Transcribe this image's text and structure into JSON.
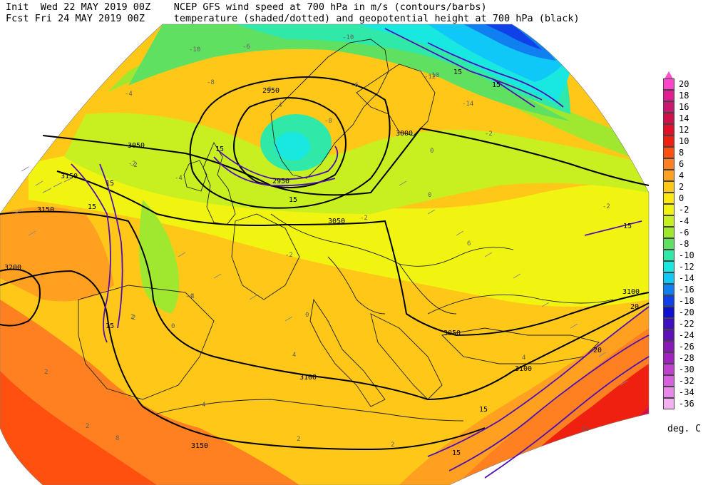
{
  "header": {
    "line1_left": "Init  Wed 22 MAY 2019 00Z",
    "line1_right": "NCEP GFS wind speed at 700 hPa in m/s (contours/barbs)",
    "line2_left": "Fcst Fri 24 MAY 2019 00Z",
    "line2_right": "temperature (shaded/dotted) and geopotential height at 700 hPa (black)"
  },
  "legend": {
    "unit": "deg. C",
    "items": [
      {
        "label": "20",
        "color": "#ff44cc"
      },
      {
        "label": "18",
        "color": "#e02090"
      },
      {
        "label": "16",
        "color": "#c81870"
      },
      {
        "label": "14",
        "color": "#d0104a"
      },
      {
        "label": "12",
        "color": "#e0102a"
      },
      {
        "label": "10",
        "color": "#f02010"
      },
      {
        "label": "8",
        "color": "#ff5010"
      },
      {
        "label": "6",
        "color": "#ff8020"
      },
      {
        "label": "4",
        "color": "#ffa020"
      },
      {
        "label": "2",
        "color": "#ffc818"
      },
      {
        "label": "0",
        "color": "#ffe810"
      },
      {
        "label": "-2",
        "color": "#f0f410"
      },
      {
        "label": "-4",
        "color": "#c8f020"
      },
      {
        "label": "-6",
        "color": "#a0e830"
      },
      {
        "label": "-8",
        "color": "#60e060"
      },
      {
        "label": "-10",
        "color": "#30e8a8"
      },
      {
        "label": "-12",
        "color": "#18e8e0"
      },
      {
        "label": "-14",
        "color": "#10c8f8"
      },
      {
        "label": "-16",
        "color": "#1080f0"
      },
      {
        "label": "-18",
        "color": "#1040e8"
      },
      {
        "label": "-20",
        "color": "#1010d0"
      },
      {
        "label": "-22",
        "color": "#4010c0"
      },
      {
        "label": "-24",
        "color": "#6010b8"
      },
      {
        "label": "-26",
        "color": "#8818b8"
      },
      {
        "label": "-28",
        "color": "#a020c0"
      },
      {
        "label": "-30",
        "color": "#c040d0"
      },
      {
        "label": "-32",
        "color": "#d860e0"
      },
      {
        "label": "-34",
        "color": "#e888e8"
      },
      {
        "label": "-36",
        "color": "#f4b0f0"
      }
    ]
  },
  "height_labels": [
    "2950",
    "3000",
    "3050",
    "3050",
    "3100",
    "3100",
    "3100",
    "3150",
    "3150",
    "3150",
    "3200",
    "2950",
    "3050"
  ],
  "wind_labels": [
    "15",
    "15",
    "15",
    "15",
    "15",
    "15",
    "15",
    "15",
    "15",
    "20",
    "15",
    "20"
  ],
  "temp_labels": [
    "-10",
    "-6",
    "-8",
    "-6",
    "-10",
    "-8",
    "-4",
    "-2",
    "-2",
    "-4",
    "-4",
    "-6",
    "-4",
    "-10",
    "-12",
    "-14",
    "-2",
    "0",
    "0",
    "-2",
    "-2",
    "0",
    "2",
    "4",
    "2",
    "6",
    "4",
    "12",
    "-2",
    "0",
    "2",
    "2",
    "2",
    "4",
    "8",
    "-4",
    "2"
  ]
}
